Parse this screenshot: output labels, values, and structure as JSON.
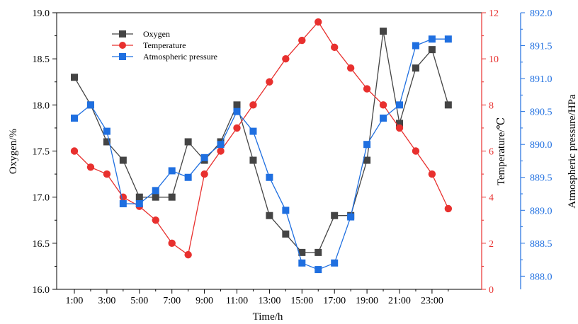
{
  "chart_data": {
    "type": "line",
    "x_label": "Time/h",
    "x_ticks": [
      "1:00",
      "3:00",
      "5:00",
      "7:00",
      "9:00",
      "11:00",
      "13:00",
      "15:00",
      "17:00",
      "19:00",
      "21:00",
      "23:00"
    ],
    "x": [
      1,
      2,
      3,
      4,
      5,
      6,
      7,
      8,
      9,
      10,
      11,
      12,
      13,
      14,
      15,
      16,
      17,
      18,
      19,
      20,
      21,
      22,
      23,
      24
    ],
    "axes": {
      "left": {
        "label": "Oxygen/%",
        "range": [
          16.0,
          19.0
        ],
        "ticks": [
          "16.0",
          "16.5",
          "17.0",
          "17.5",
          "18.0",
          "18.5",
          "19.0"
        ],
        "color": "#333333"
      },
      "right1": {
        "label": "Temperature/℃",
        "range": [
          0,
          12
        ],
        "ticks": [
          "0",
          "2",
          "4",
          "6",
          "8",
          "10",
          "12"
        ],
        "color": "#e8302e"
      },
      "right2": {
        "label": "Atmospheric pressure/HPa",
        "range": [
          887.8,
          892.0
        ],
        "ticks": [
          "888.0",
          "888.5",
          "889.0",
          "889.5",
          "890.0",
          "890.5",
          "891.0",
          "891.5",
          "892.0"
        ],
        "color": "#1f6fe0"
      }
    },
    "series": [
      {
        "name": "Oxygen",
        "axis": "left",
        "color": "#444444",
        "marker": "square",
        "values": [
          18.3,
          18.0,
          17.6,
          17.4,
          17.0,
          17.0,
          17.0,
          17.6,
          17.4,
          17.6,
          18.0,
          17.4,
          16.8,
          16.6,
          16.4,
          16.4,
          16.8,
          16.8,
          17.4,
          18.8,
          17.8,
          18.4,
          18.6,
          18.0
        ]
      },
      {
        "name": "Temperature",
        "axis": "right1",
        "color": "#e8302e",
        "marker": "circle",
        "values": [
          6.0,
          5.3,
          5.0,
          4.0,
          3.6,
          3.0,
          2.0,
          1.5,
          5.0,
          6.0,
          7.0,
          8.0,
          9.0,
          10.0,
          10.8,
          11.6,
          10.5,
          9.6,
          8.7,
          8.0,
          7.0,
          6.0,
          5.0,
          3.5
        ]
      },
      {
        "name": "Atmospheric pressure",
        "axis": "right2",
        "color": "#1f6fe0",
        "marker": "square",
        "values": [
          890.4,
          890.6,
          890.2,
          889.1,
          889.1,
          889.3,
          889.6,
          889.5,
          889.8,
          890.0,
          890.5,
          890.2,
          889.5,
          889.0,
          888.2,
          888.1,
          888.2,
          888.9,
          890.0,
          890.4,
          890.6,
          891.5,
          891.6,
          891.6
        ]
      }
    ],
    "legend_position": "top-left",
    "grid": false
  }
}
